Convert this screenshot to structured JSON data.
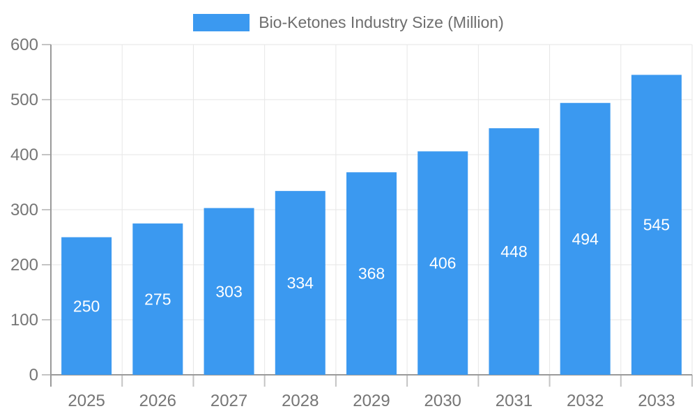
{
  "chart_data": {
    "type": "bar",
    "categories": [
      "2025",
      "2026",
      "2027",
      "2028",
      "2029",
      "2030",
      "2031",
      "2032",
      "2033"
    ],
    "series": [
      {
        "name": "Bio-Ketones Industry Size (Million)",
        "values": [
          250,
          275,
          303,
          334,
          368,
          406,
          448,
          494,
          545
        ]
      }
    ],
    "title": "",
    "xlabel": "",
    "ylabel": "",
    "ylim": [
      0,
      600
    ],
    "yticks": [
      0,
      100,
      200,
      300,
      400,
      500,
      600
    ],
    "grid": true,
    "legend_position": "top-center",
    "bar_value_labels": "inside-vertical-center"
  },
  "colors": {
    "bar": "#3B99F0",
    "grid": "#e6e6e6",
    "axis": "#9a9a9a",
    "tick": "#c4c4c4",
    "axis_text": "#757575",
    "legend_text": "#6e6e6e",
    "bar_label_text": "#ffffff",
    "background": "#ffffff"
  }
}
